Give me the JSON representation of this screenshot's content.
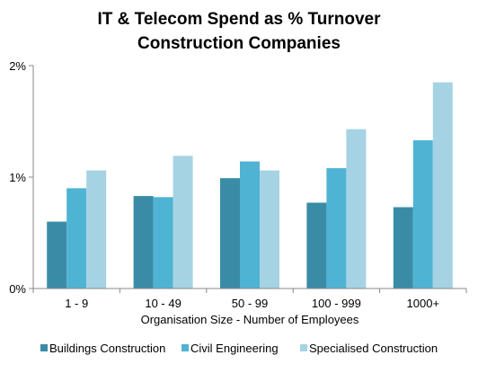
{
  "chart_data": {
    "type": "bar",
    "title_lines": [
      "IT & Telecom Spend as % Turnover",
      "Construction Companies"
    ],
    "xlabel": "Organisation Size - Number of Employees",
    "ylabel": "",
    "categories": [
      "1 - 9",
      "10 - 49",
      "50 - 99",
      "100 - 999",
      "1000+"
    ],
    "ylim": [
      0,
      2
    ],
    "yticks": [
      0,
      1,
      2
    ],
    "ytick_labels": [
      "0%",
      "1%",
      "2%"
    ],
    "grid": false,
    "legend_position": "bottom",
    "series": [
      {
        "name": "Buildings Construction",
        "color": "#3a8ca6",
        "values": [
          0.6,
          0.83,
          0.99,
          0.77,
          0.73
        ]
      },
      {
        "name": "Civil Engineering",
        "color": "#4fb3d4",
        "values": [
          0.9,
          0.82,
          1.14,
          1.08,
          1.33
        ]
      },
      {
        "name": "Specialised Construction",
        "color": "#a6d3e4",
        "values": [
          1.06,
          1.19,
          1.06,
          1.43,
          1.85
        ]
      }
    ]
  }
}
